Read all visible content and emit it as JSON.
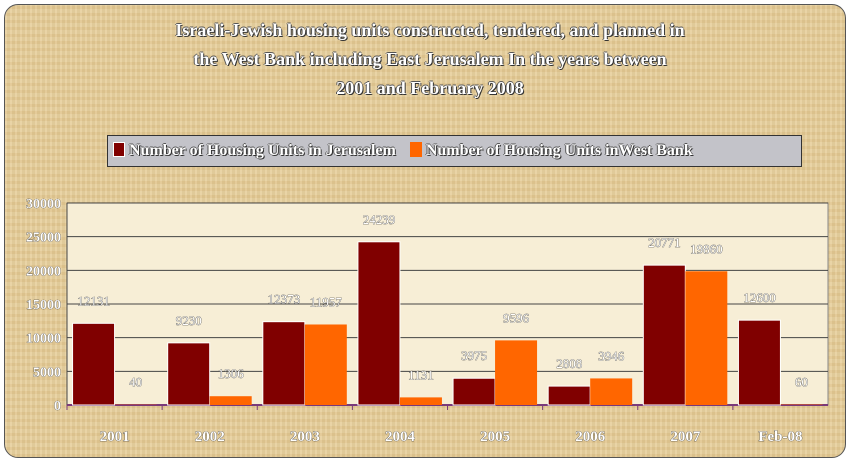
{
  "chart_data": {
    "type": "bar",
    "title": "Israeli-Jewish housing units constructed, tendered, and planned in the West Bank including East Jerusalem In the years between 2001 and February 2008",
    "title_lines": [
      "Israeli-Jewish housing units constructed, tendered, and planned in",
      "the West Bank including East Jerusalem In the years between",
      "2001 and February 2008"
    ],
    "categories": [
      "2001",
      "2002",
      "2003",
      "2004",
      "2005",
      "2006",
      "2007",
      "Feb-08"
    ],
    "series": [
      {
        "name": "Number of Housing Units in Jerusalem",
        "color": "#800000",
        "values": [
          12131,
          9230,
          12373,
          24239,
          3975,
          2808,
          20771,
          12600
        ]
      },
      {
        "name": "Number of Housing Units inWest Bank",
        "color": "#ff6600",
        "values": [
          40,
          1306,
          11957,
          1131,
          9596,
          3946,
          19860,
          60
        ]
      }
    ],
    "xlabel": "",
    "ylabel": "",
    "ylim": [
      0,
      30000
    ],
    "yticks": [
      "0",
      "5000",
      "10000",
      "15000",
      "20000",
      "25000",
      "30000"
    ],
    "grid": true,
    "legend": "top"
  }
}
